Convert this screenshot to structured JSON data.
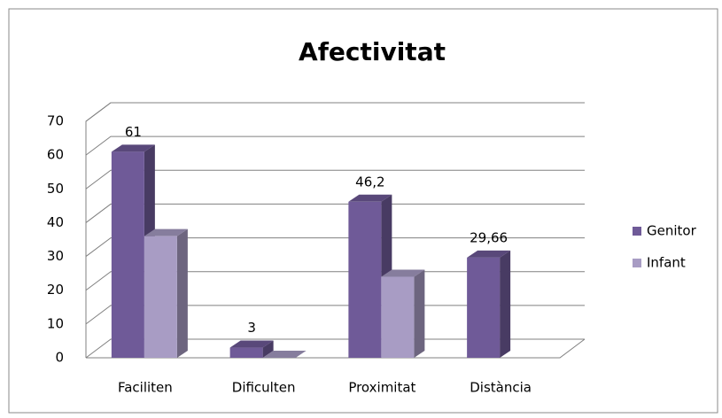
{
  "chart_data": {
    "type": "bar3d",
    "title": "Afectivitat",
    "categories": [
      "Faciliten",
      "Dificulten",
      "Proximitat",
      "Distància"
    ],
    "series": [
      {
        "name": "Genitor",
        "color": "#6f5a98",
        "values": [
          61,
          3,
          46.2,
          29.66
        ],
        "value_labels": [
          "61",
          "3",
          "46,2",
          "29,66"
        ]
      },
      {
        "name": "Infant",
        "color": "#a89cc4",
        "values": [
          36,
          0,
          24,
          null
        ]
      }
    ],
    "ylim": [
      0,
      70
    ],
    "yticks": [
      0,
      10,
      20,
      30,
      40,
      50,
      60,
      70
    ],
    "grid": true,
    "legend": "right"
  }
}
